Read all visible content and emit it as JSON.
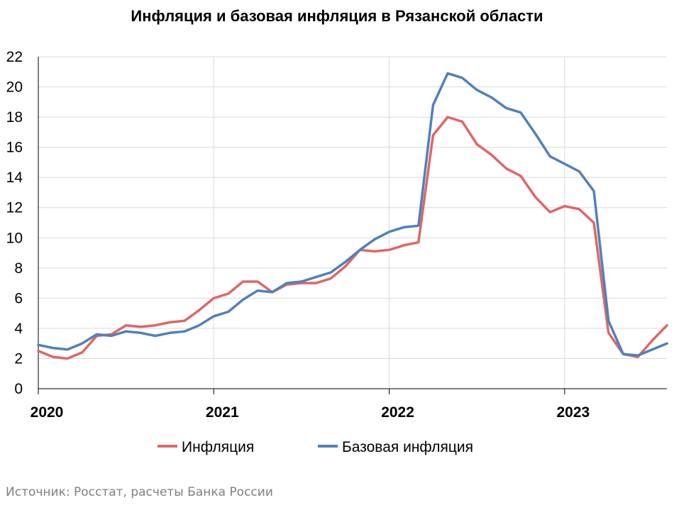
{
  "chart_data": {
    "type": "line",
    "title": "Инфляция и базовая инфляция в Рязанской области",
    "source": "Источник: Росстат, расчеты Банка России",
    "ylim": [
      0,
      22
    ],
    "yticks": [
      "0",
      "2",
      "4",
      "6",
      "8",
      "10",
      "12",
      "14",
      "16",
      "18",
      "20",
      "22"
    ],
    "xlim": [
      2020,
      2023.583
    ],
    "xticks": [
      {
        "label": "2020",
        "value": 2020
      },
      {
        "label": "2021",
        "value": 2021
      },
      {
        "label": "2022",
        "value": 2022
      },
      {
        "label": "2023",
        "value": 2023
      }
    ],
    "grid": true,
    "legend_position": "bottom",
    "series": [
      {
        "name": "Инфляция",
        "color": "#e06666",
        "values": [
          2.5,
          2.1,
          2.0,
          2.4,
          3.5,
          3.6,
          4.2,
          4.1,
          4.2,
          4.4,
          4.5,
          5.2,
          6.0,
          6.3,
          7.1,
          7.1,
          6.4,
          6.9,
          7.0,
          7.0,
          7.3,
          8.1,
          9.2,
          9.1,
          9.2,
          9.5,
          9.7,
          16.8,
          18.0,
          17.7,
          16.2,
          15.5,
          14.6,
          14.1,
          12.7,
          11.7,
          12.1,
          11.9,
          11.0,
          3.7,
          2.3,
          2.1,
          3.2,
          4.2
        ]
      },
      {
        "name": "Базовая инфляция",
        "color": "#4f81bd",
        "values": [
          2.9,
          2.7,
          2.6,
          3.0,
          3.6,
          3.5,
          3.8,
          3.7,
          3.5,
          3.7,
          3.8,
          4.2,
          4.8,
          5.1,
          5.9,
          6.5,
          6.4,
          7.0,
          7.1,
          7.4,
          7.7,
          8.4,
          9.2,
          9.9,
          10.4,
          10.7,
          10.8,
          18.8,
          20.9,
          20.6,
          19.8,
          19.3,
          18.6,
          18.3,
          16.9,
          15.4,
          14.9,
          14.4,
          13.1,
          4.5,
          2.3,
          2.2,
          2.6,
          3.0
        ]
      }
    ]
  }
}
